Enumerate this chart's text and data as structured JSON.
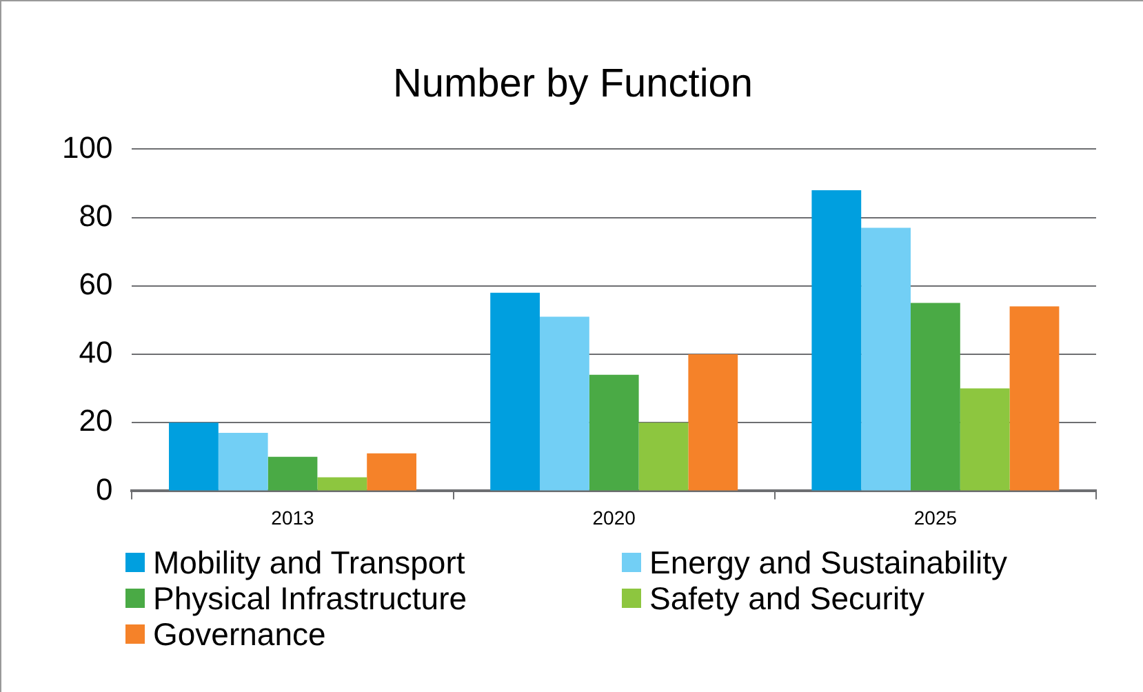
{
  "chart_data": {
    "type": "bar",
    "title": "Number by Function",
    "categories": [
      "2013",
      "2020",
      "2025"
    ],
    "series": [
      {
        "name": "Mobility and Transport",
        "color": "#009fdf",
        "values": [
          20,
          58,
          88
        ]
      },
      {
        "name": "Energy and Sustainability",
        "color": "#72cff5",
        "values": [
          17,
          51,
          77
        ]
      },
      {
        "name": "Physical Infrastructure",
        "color": "#4aaa45",
        "values": [
          10,
          34,
          55
        ]
      },
      {
        "name": "Safety and Security",
        "color": "#8dc63f",
        "values": [
          4,
          20,
          30
        ]
      },
      {
        "name": "Governance",
        "color": "#f58229",
        "values": [
          11,
          40,
          54
        ]
      }
    ],
    "ylim": [
      0,
      100
    ],
    "yticks": [
      0,
      20,
      40,
      60,
      80,
      100
    ],
    "grid": "y",
    "legend": "bottom"
  }
}
